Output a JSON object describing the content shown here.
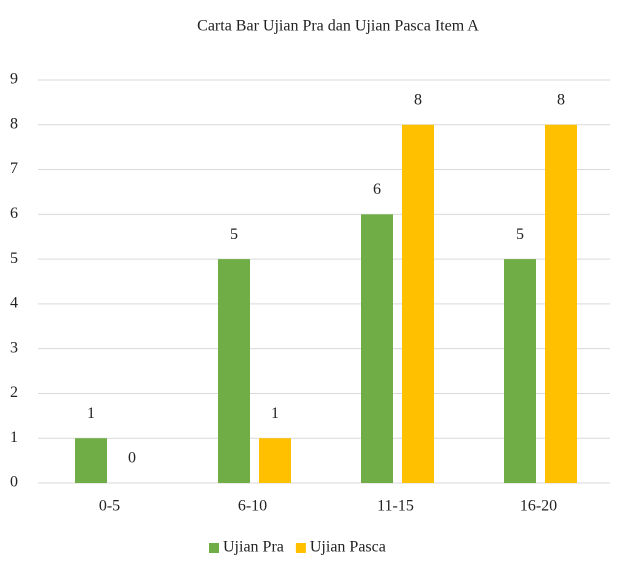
{
  "chart_data": {
    "type": "bar",
    "title": "Carta Bar Ujian Pra dan Ujian Pasca Item A",
    "categories": [
      "0-5",
      "6-10",
      "11-15",
      "16-20"
    ],
    "series": [
      {
        "name": "Ujian Pra",
        "color": "#70ad47",
        "values": [
          1,
          5,
          6,
          5
        ]
      },
      {
        "name": "Ujian Pasca",
        "color": "#ffc000",
        "values": [
          0,
          1,
          8,
          8
        ]
      }
    ],
    "ylim": [
      0,
      9
    ],
    "yticks": [
      0,
      1,
      2,
      3,
      4,
      5,
      6,
      7,
      8,
      9
    ],
    "grid": true,
    "legend": "bottom"
  }
}
